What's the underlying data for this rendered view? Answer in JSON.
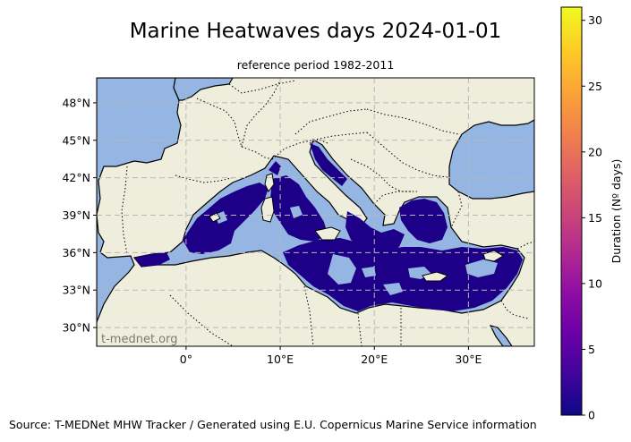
{
  "title": "Marine Heatwaves days 2024-01-01",
  "subtitle": "reference period 1982-2011",
  "map": {
    "lon_range": [
      -9.5,
      37
    ],
    "lat_range": [
      28.5,
      50
    ],
    "lat_ticks": [
      {
        "value": 48,
        "label": "48°N"
      },
      {
        "value": 45,
        "label": "45°N"
      },
      {
        "value": 42,
        "label": "42°N"
      },
      {
        "value": 39,
        "label": "39°N"
      },
      {
        "value": 36,
        "label": "36°N"
      },
      {
        "value": 33,
        "label": "33°N"
      },
      {
        "value": 30,
        "label": "30°N"
      }
    ],
    "lon_ticks": [
      {
        "value": 0,
        "label": "0°"
      },
      {
        "value": 10,
        "label": "10°E"
      },
      {
        "value": 20,
        "label": "20°E"
      },
      {
        "value": 30,
        "label": "30°E"
      }
    ],
    "watermark": "t-mednet.org",
    "colors": {
      "ocean": "#95b5e2",
      "land": "#efeddc",
      "heatwave_days": "#1d0087",
      "grid": "#b8b8b8",
      "border": "#000000"
    }
  },
  "colorbar": {
    "label": "Duration (Nº days)",
    "min": 0,
    "max": 31,
    "ticks": [
      {
        "value": 0,
        "label": "0"
      },
      {
        "value": 5,
        "label": "5"
      },
      {
        "value": 10,
        "label": "10"
      },
      {
        "value": 15,
        "label": "15"
      },
      {
        "value": 20,
        "label": "20"
      },
      {
        "value": 25,
        "label": "25"
      },
      {
        "value": 30,
        "label": "30"
      }
    ],
    "colormap": "plasma"
  },
  "source": "Source: T-MEDNet MHW Tracker / Generated using E.U. Copernicus Marine Service information"
}
